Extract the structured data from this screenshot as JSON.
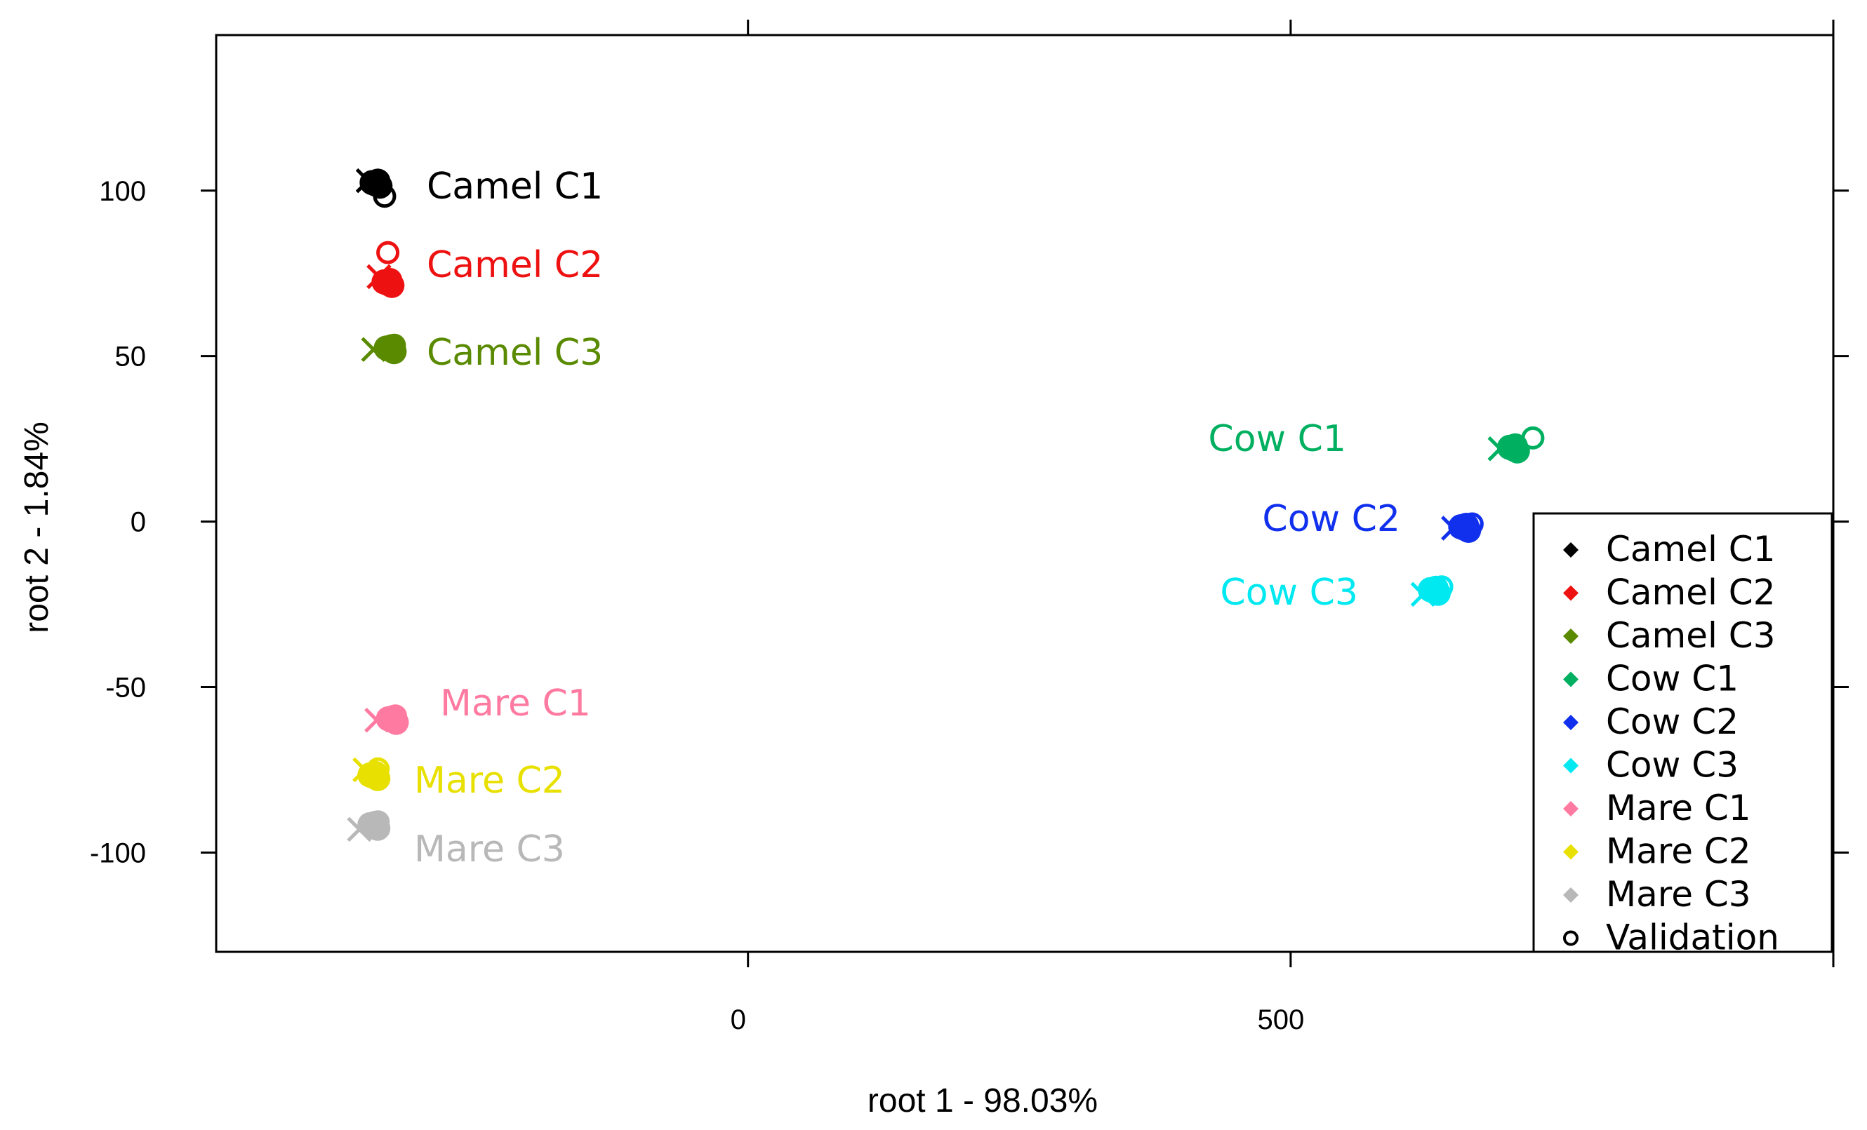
{
  "chart_data": {
    "type": "scatter",
    "title": "",
    "xlabel": "root 1 - 98.03%",
    "ylabel": "root 2 - 1.84%",
    "xlim": [
      -490,
      1000
    ],
    "ylim": [
      -130,
      147
    ],
    "x_ticks": [
      0,
      500
    ],
    "y_ticks": [
      100,
      50,
      0,
      -50,
      -100
    ],
    "x_ticks_top_only": [
      1000
    ],
    "legend_position": "bottom-right",
    "grid": false,
    "series": [
      {
        "name": "Camel C1",
        "color": "#000000",
        "label": "Camel C1",
        "centroid": [
          -343,
          102
        ],
        "validation": [
          -340,
          100
        ],
        "cross": [
          -350,
          103
        ]
      },
      {
        "name": "Camel C2",
        "color": "#ee1111",
        "label": "Camel C2",
        "centroid": [
          -332,
          72
        ],
        "validation": [
          -337,
          80
        ],
        "cross": [
          -340,
          74
        ]
      },
      {
        "name": "Camel C3",
        "color": "#5a8a00",
        "label": "Camel C3",
        "centroid": [
          -330,
          52
        ],
        "validation": [
          -331,
          52
        ],
        "cross": [
          -345,
          52
        ]
      },
      {
        "name": "Cow C1",
        "color": "#00b060",
        "label": "Cow C1",
        "centroid": [
          705,
          22
        ],
        "validation": [
          718,
          24
        ],
        "cross": [
          693,
          22
        ]
      },
      {
        "name": "Cow C2",
        "color": "#1030ee",
        "label": "Cow C2",
        "centroid": [
          660,
          -2
        ],
        "validation": [
          662,
          -2
        ],
        "cross": [
          650,
          -2
        ]
      },
      {
        "name": "Cow C3",
        "color": "#00e8f0",
        "label": "Cow C3",
        "centroid": [
          632,
          -21
        ],
        "validation": [
          634,
          -21
        ],
        "cross": [
          622,
          -22
        ]
      },
      {
        "name": "Mare C1",
        "color": "#ff7aa0",
        "label": "Mare C1",
        "centroid": [
          -328,
          -60
        ],
        "validation": [
          -330,
          -60
        ],
        "cross": [
          -342,
          -60
        ]
      },
      {
        "name": "Mare C2",
        "color": "#e8e000",
        "label": "Mare C2",
        "centroid": [
          -345,
          -77
        ],
        "validation": [
          -346,
          -76
        ],
        "cross": [
          -353,
          -75
        ]
      },
      {
        "name": "Mare C3",
        "color": "#b8b8b8",
        "label": "Mare C3",
        "centroid": [
          -345,
          -92
        ],
        "validation": [
          -346,
          -92
        ],
        "cross": [
          -358,
          -93
        ]
      }
    ],
    "legend": [
      {
        "label": "Camel C1",
        "color": "#000000",
        "marker": "filled"
      },
      {
        "label": "Camel C2",
        "color": "#ee1111",
        "marker": "filled"
      },
      {
        "label": "Camel C3",
        "color": "#5a8a00",
        "marker": "filled"
      },
      {
        "label": "Cow C1",
        "color": "#00b060",
        "marker": "filled"
      },
      {
        "label": "Cow C2",
        "color": "#1030ee",
        "marker": "filled"
      },
      {
        "label": "Cow C3",
        "color": "#00e8f0",
        "marker": "filled"
      },
      {
        "label": "Mare C1",
        "color": "#ff7aa0",
        "marker": "filled"
      },
      {
        "label": "Mare C2",
        "color": "#e8e000",
        "marker": "filled"
      },
      {
        "label": "Mare C3",
        "color": "#b8b8b8",
        "marker": "filled"
      },
      {
        "label": "Validation",
        "color": "#000000",
        "marker": "open"
      }
    ]
  }
}
